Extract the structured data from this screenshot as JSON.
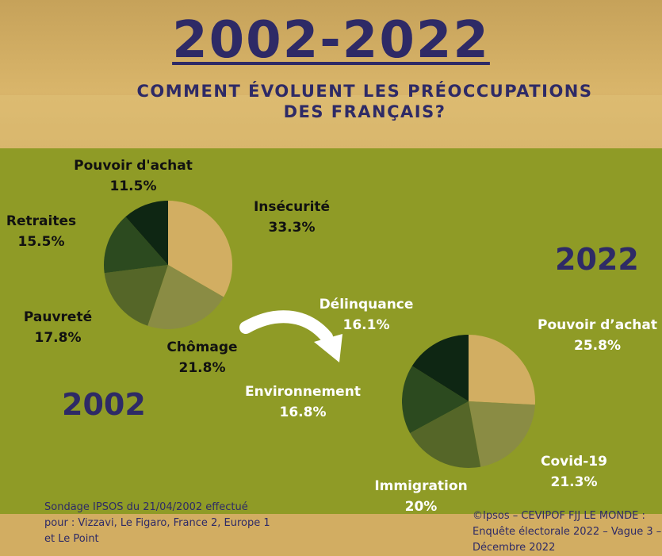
{
  "title": "2002-2022",
  "subtitle": "COMMENT ÉVOLUENT LES PRÉOCCUPATIONS DES FRANÇAIS?",
  "year_2002": "2002",
  "year_2022": "2022",
  "source_2002": "Sondage IPSOS du 21/04/2002 effectué pour : Vizzavi, Le Figaro, France 2, Europe 1 et Le Point",
  "source_2022": "©Ipsos – CEVIPOF FJJ LE MONDE : Enquête électorale 2022 – Vague 3 – Décembre 2022",
  "colors": {
    "navy": "#2e2a66",
    "green_bg": "#8f9b26",
    "tan": "#d2ad5f"
  },
  "chart_data": [
    {
      "type": "pie",
      "title": "2002",
      "slices": [
        {
          "label": "Insécurité",
          "value": 33.3,
          "display": "33.3%",
          "color": "#d2ae62"
        },
        {
          "label": "Chômage",
          "value": 21.8,
          "display": "21.8%",
          "color": "#8a8c44"
        },
        {
          "label": "Pauvreté",
          "value": 17.8,
          "display": "17.8%",
          "color": "#556628"
        },
        {
          "label": "Retraites",
          "value": 15.5,
          "display": "15.5%",
          "color": "#2c4a1f"
        },
        {
          "label": "Pouvoir d'achat",
          "value": 11.5,
          "display": "11.5%",
          "color": "#0e2613"
        }
      ]
    },
    {
      "type": "pie",
      "title": "2022",
      "slices": [
        {
          "label": "Pouvoir d’achat",
          "value": 25.8,
          "display": "25.8%",
          "color": "#d2ae62"
        },
        {
          "label": "Covid-19",
          "value": 21.3,
          "display": "21.3%",
          "color": "#8a8c44"
        },
        {
          "label": "Immigration",
          "value": 20,
          "display": "20%",
          "color": "#556628"
        },
        {
          "label": "Environnement",
          "value": 16.8,
          "display": "16.8%",
          "color": "#2c4a1f"
        },
        {
          "label": "Délinquance",
          "value": 16.1,
          "display": "16.1%",
          "color": "#0e2613"
        }
      ]
    }
  ]
}
